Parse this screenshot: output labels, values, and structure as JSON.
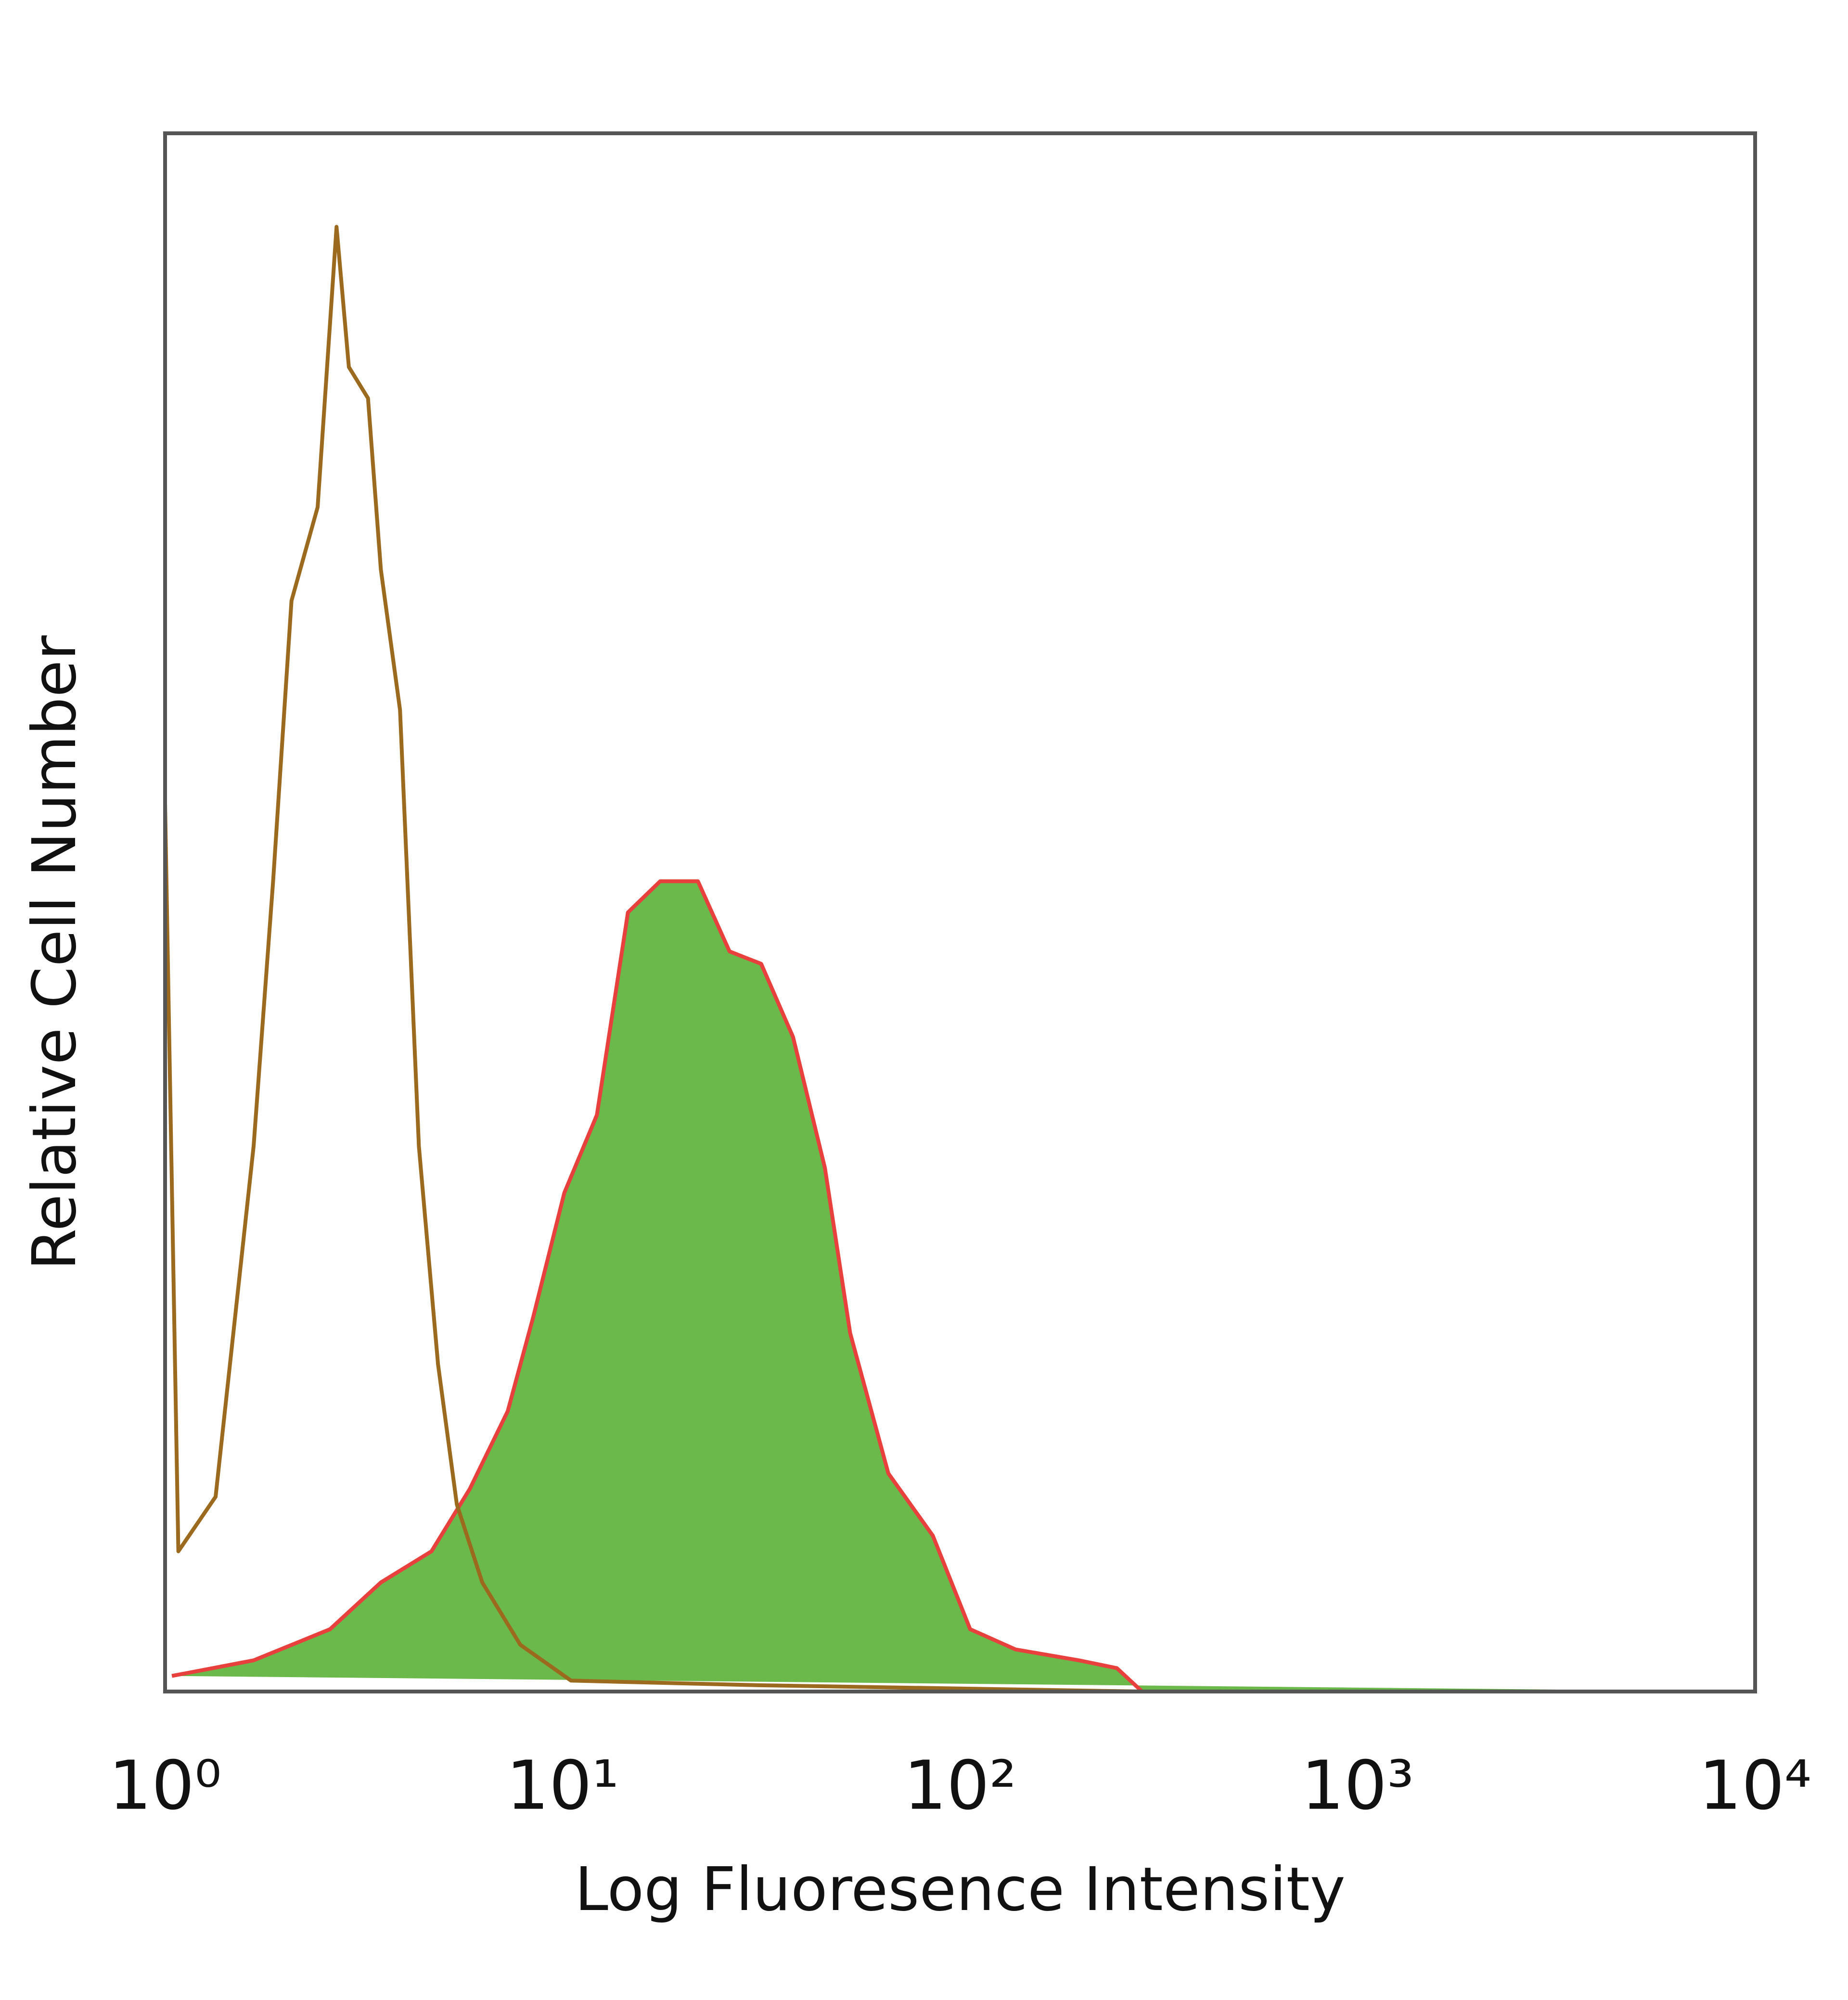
{
  "chart_data": {
    "type": "histogram-line",
    "x_label": "Log Fluoresence Intensity",
    "y_label": "Relative Cell Number",
    "xscale": "log",
    "xlim": [
      1,
      10000
    ],
    "xticks": [
      {
        "value": 1,
        "label": "10⁰"
      },
      {
        "value": 10,
        "label": "10¹"
      },
      {
        "value": 100,
        "label": "10²"
      },
      {
        "value": 1000,
        "label": "10³"
      },
      {
        "value": 10000,
        "label": "10⁴"
      }
    ],
    "ylim": [
      0,
      100
    ],
    "series": [
      {
        "color": "#6ab94a",
        "edge_color": "#e8403c",
        "filled": true,
        "x": [
          1.04,
          1.67,
          2.6,
          3.49,
          4.68,
          5.84,
          7.28,
          8.43,
          10.1,
          12.2,
          14.6,
          17.6,
          21.9,
          26.3,
          31.6,
          38.0,
          45.7,
          52.9,
          66.0,
          85.4,
          106,
          138,
          199,
          248,
          287,
          10000
        ],
        "values": [
          1,
          2,
          4,
          7,
          9,
          13,
          18,
          24,
          32,
          37,
          50,
          52,
          52,
          47.5,
          46.7,
          42,
          33.6,
          23,
          14,
          10,
          4,
          2.7,
          2,
          1.5,
          0,
          0
        ]
      },
      {
        "color": "#9c6a1e",
        "filled": false,
        "x": [
          1,
          1.08,
          1.34,
          1.67,
          1.87,
          2.08,
          2.42,
          2.7,
          2.9,
          3.24,
          3.49,
          3.9,
          4.35,
          4.86,
          5.42,
          6.28,
          7.83,
          10.5,
          31.6,
          287,
          10000
        ],
        "values": [
          57,
          9,
          12.5,
          35,
          52,
          70,
          76,
          94,
          85,
          83,
          72,
          63,
          35,
          21,
          12,
          7,
          3,
          0.7,
          0.4,
          0,
          0
        ]
      }
    ]
  }
}
